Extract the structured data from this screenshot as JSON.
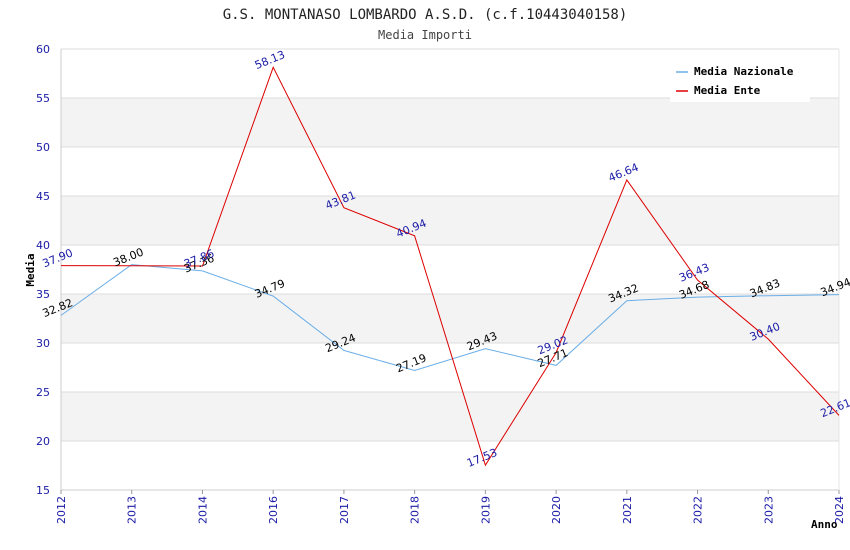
{
  "chart_data": {
    "type": "line",
    "title": "G.S. MONTANASO LOMBARDO A.S.D. (c.f.10443040158)",
    "subtitle": "Media Importi",
    "xlabel": "Anno",
    "ylabel": "Media",
    "categories": [
      "2012",
      "2013",
      "2014",
      "2016",
      "2017",
      "2018",
      "2019",
      "2020",
      "2021",
      "2022",
      "2023",
      "2024"
    ],
    "ylim": [
      15,
      60
    ],
    "yticks": [
      "15",
      "20",
      "25",
      "30",
      "35",
      "40",
      "45",
      "50",
      "55",
      "60"
    ],
    "grid": true,
    "legend_position": "top-right",
    "series": [
      {
        "name": "Media Nazionale",
        "color": "#6aaee8",
        "label_color": "#000000",
        "values": [
          32.82,
          38.0,
          37.36,
          34.79,
          29.24,
          27.19,
          29.43,
          27.71,
          34.32,
          34.68,
          34.83,
          34.94
        ],
        "labels": [
          "32.82",
          "38.00",
          "37.36",
          "34.79",
          "29.24",
          "27.19",
          "29.43",
          "27.71",
          "34.32",
          "34.68",
          "34.83",
          "34.94"
        ]
      },
      {
        "name": "Media Ente",
        "color": "#dd0000",
        "label_color": "#1a1aa6",
        "values": [
          37.9,
          null,
          37.86,
          58.13,
          43.81,
          40.94,
          17.53,
          29.02,
          46.64,
          36.43,
          30.4,
          22.61
        ],
        "labels": [
          "37.90",
          "",
          "37.86",
          "58.13",
          "43.81",
          "40.94",
          "17.53",
          "29.02",
          "46.64",
          "36.43",
          "30.40",
          "22.61"
        ]
      }
    ]
  }
}
